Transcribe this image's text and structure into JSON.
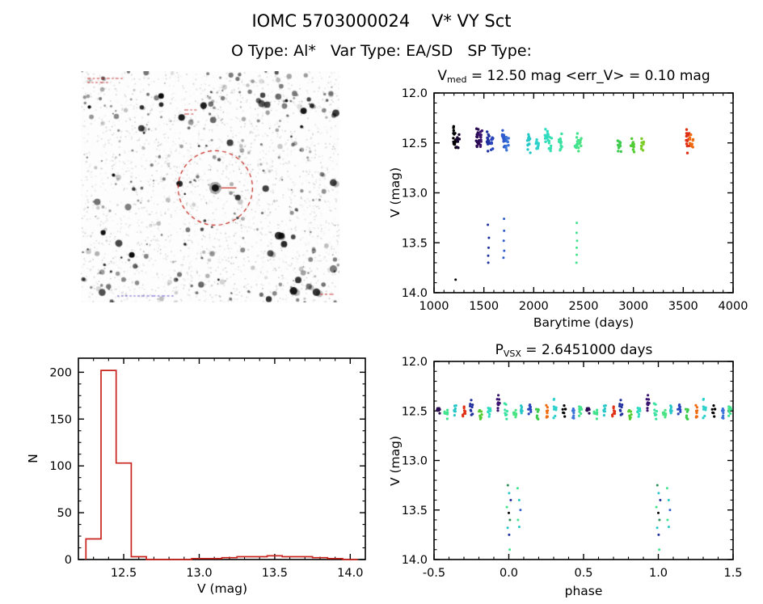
{
  "header": {
    "title": "IOMC 5703000024    V* VY Sct",
    "subtitle": "O Type: Al*   Var Type: EA/SD   SP Type:"
  },
  "star_field": {
    "background": "#fdfdfd",
    "circle_color": "#c22218",
    "pointer_color": "#c22218",
    "top_note_color": "#cc3333",
    "bottom_note_color": "#5a49c8",
    "seed": 77
  },
  "chart_data": [
    {
      "type": "scatter",
      "name": "lightcurve-vs-time",
      "title": "V_med = 12.50 mag <err_V> = 0.10 mag",
      "title_parts": {
        "prefix": "V",
        "sub": "med",
        "rest": " = 12.50 mag <err_V> = 0.10 mag"
      },
      "median_v_mag": 12.5,
      "err_v_mag": 0.1,
      "xlabel": "Barytime (days)",
      "ylabel": "V (mag)",
      "xlim": [
        1000,
        4000
      ],
      "ylim": [
        12.0,
        14.0
      ],
      "y_inverted": true,
      "xticks": [
        1000,
        1500,
        2000,
        2500,
        3000,
        3500,
        4000
      ],
      "xtick_labels": [
        "1000",
        "1500",
        "2000",
        "2500",
        "3000",
        "3500",
        "4000"
      ],
      "yticks": [
        12.0,
        12.5,
        13.0,
        13.5,
        14.0
      ],
      "ytick_labels": [
        "12.0",
        "12.5",
        "13.0",
        "13.5",
        "14.0"
      ],
      "x_minor": 100,
      "y_minor": 0.1,
      "clusters": [
        {
          "x": 1210,
          "color": "#000000",
          "n": 14,
          "y_min": 12.3,
          "y_max": 12.62,
          "deep": [
            13.87
          ]
        },
        {
          "x": 1240,
          "color": "#16062f",
          "n": 8,
          "y_min": 12.38,
          "y_max": 12.58,
          "deep": []
        },
        {
          "x": 1440,
          "color": "#2a0a52",
          "n": 15,
          "y_min": 12.32,
          "y_max": 12.6,
          "deep": []
        },
        {
          "x": 1468,
          "color": "#3a1470",
          "n": 11,
          "y_min": 12.36,
          "y_max": 12.58,
          "deep": []
        },
        {
          "x": 1545,
          "color": "#20309f",
          "n": 13,
          "y_min": 12.35,
          "y_max": 12.6,
          "deep": [
            13.32,
            13.45,
            13.55,
            13.63,
            13.7
          ]
        },
        {
          "x": 1578,
          "color": "#2a44bb",
          "n": 9,
          "y_min": 12.4,
          "y_max": 12.58,
          "deep": []
        },
        {
          "x": 1700,
          "color": "#2f5ccc",
          "n": 12,
          "y_min": 12.36,
          "y_max": 12.58,
          "deep": [
            13.26,
            13.38,
            13.48,
            13.58,
            13.65
          ]
        },
        {
          "x": 1735,
          "color": "#3b74d8",
          "n": 9,
          "y_min": 12.42,
          "y_max": 12.6,
          "deep": []
        },
        {
          "x": 1950,
          "color": "#27c7c7",
          "n": 12,
          "y_min": 12.4,
          "y_max": 12.62,
          "deep": []
        },
        {
          "x": 2040,
          "color": "#2ed2cb",
          "n": 10,
          "y_min": 12.42,
          "y_max": 12.6,
          "deep": []
        },
        {
          "x": 2130,
          "color": "#31dcc0",
          "n": 14,
          "y_min": 12.3,
          "y_max": 12.56,
          "deep": []
        },
        {
          "x": 2168,
          "color": "#36e0b2",
          "n": 9,
          "y_min": 12.42,
          "y_max": 12.6,
          "deep": []
        },
        {
          "x": 2270,
          "color": "#3ce2a1",
          "n": 12,
          "y_min": 12.34,
          "y_max": 12.6,
          "deep": []
        },
        {
          "x": 2430,
          "color": "#42e38e",
          "n": 12,
          "y_min": 12.38,
          "y_max": 12.6,
          "deep": [
            13.3,
            13.4,
            13.48,
            13.55,
            13.62,
            13.7
          ]
        },
        {
          "x": 2465,
          "color": "#48e382",
          "n": 8,
          "y_min": 12.44,
          "y_max": 12.6,
          "deep": []
        },
        {
          "x": 2860,
          "color": "#3ecb4e",
          "n": 10,
          "y_min": 12.42,
          "y_max": 12.6,
          "deep": []
        },
        {
          "x": 2990,
          "color": "#52cc33",
          "n": 12,
          "y_min": 12.4,
          "y_max": 12.62,
          "deep": []
        },
        {
          "x": 3090,
          "color": "#7ccc2a",
          "n": 9,
          "y_min": 12.44,
          "y_max": 12.58,
          "deep": []
        },
        {
          "x": 3545,
          "color": "#e03015",
          "n": 16,
          "y_min": 12.34,
          "y_max": 12.62,
          "deep": []
        },
        {
          "x": 3582,
          "color": "#f06a10",
          "n": 12,
          "y_min": 12.4,
          "y_max": 12.6,
          "deep": []
        }
      ]
    },
    {
      "type": "histogram",
      "name": "v-mag-histogram",
      "xlabel": "V (mag)",
      "ylabel": "N",
      "xlim": [
        12.2,
        14.1
      ],
      "ylim": [
        0,
        215
      ],
      "y_inverted": false,
      "xticks": [
        12.5,
        13.0,
        13.5,
        14.0
      ],
      "xtick_labels": [
        "12.5",
        "13.0",
        "13.5",
        "14.0"
      ],
      "yticks": [
        0,
        50,
        100,
        150,
        200
      ],
      "ytick_labels": [
        "0",
        "50",
        "100",
        "150",
        "200"
      ],
      "x_minor": 0.1,
      "y_minor": 12.5,
      "color": "#c8231c",
      "bin_edges": [
        12.25,
        12.35,
        12.45,
        12.55,
        12.65,
        12.75,
        12.85,
        12.95,
        13.05,
        13.15,
        13.25,
        13.35,
        13.45,
        13.55,
        13.65,
        13.75,
        13.85,
        13.95,
        14.05
      ],
      "counts": [
        22,
        202,
        103,
        3,
        0,
        0,
        0,
        1,
        1,
        2,
        3,
        3,
        4,
        3,
        3,
        2,
        1,
        0
      ]
    },
    {
      "type": "scatter",
      "name": "phase-folded-lightcurve",
      "title": "P_VSX = 2.6451000 days",
      "title_parts": {
        "prefix": "P",
        "sub": "VSX",
        "rest": " = 2.6451000 days"
      },
      "period_days": 2.6451,
      "xlabel": "phase",
      "ylabel": "V (mag)",
      "xlim": [
        -0.5,
        1.5
      ],
      "ylim": [
        12.0,
        14.0
      ],
      "y_inverted": true,
      "xticks": [
        -0.5,
        0.0,
        0.5,
        1.0,
        1.5
      ],
      "xtick_labels": [
        "-0.5",
        "0.0",
        "0.5",
        "1.0",
        "1.5"
      ],
      "yticks": [
        12.0,
        12.5,
        13.0,
        13.5,
        14.0
      ],
      "ytick_labels": [
        "12.0",
        "12.5",
        "13.0",
        "13.5",
        "14.0"
      ],
      "x_minor": 0.1,
      "y_minor": 0.1,
      "cluster_repeat_offset": 1.0,
      "clusters": [
        {
          "p": -0.47,
          "color": "#2a0a52",
          "n": 8,
          "y_min": 12.4,
          "y_max": 12.58
        },
        {
          "p": -0.42,
          "color": "#42e38e",
          "n": 9,
          "y_min": 12.42,
          "y_max": 12.6
        },
        {
          "p": -0.36,
          "color": "#27c7c7",
          "n": 8,
          "y_min": 12.38,
          "y_max": 12.58
        },
        {
          "p": -0.3,
          "color": "#e03015",
          "n": 8,
          "y_min": 12.42,
          "y_max": 12.6
        },
        {
          "p": -0.25,
          "color": "#20309f",
          "n": 9,
          "y_min": 12.36,
          "y_max": 12.56
        },
        {
          "p": -0.19,
          "color": "#52cc33",
          "n": 8,
          "y_min": 12.42,
          "y_max": 12.62
        },
        {
          "p": -0.13,
          "color": "#31dcc0",
          "n": 9,
          "y_min": 12.4,
          "y_max": 12.58
        },
        {
          "p": -0.07,
          "color": "#3a1470",
          "n": 10,
          "y_min": 12.3,
          "y_max": 12.56
        },
        {
          "p": -0.02,
          "color": "#3ce2a1",
          "n": 8,
          "y_min": 12.4,
          "y_max": 12.6
        },
        {
          "p": 0.04,
          "color": "#48e382",
          "n": 8,
          "y_min": 12.42,
          "y_max": 12.62
        },
        {
          "p": 0.09,
          "color": "#27c7c7",
          "n": 8,
          "y_min": 12.4,
          "y_max": 12.58
        },
        {
          "p": 0.14,
          "color": "#2a44bb",
          "n": 9,
          "y_min": 12.38,
          "y_max": 12.58
        },
        {
          "p": 0.19,
          "color": "#3ecb4e",
          "n": 8,
          "y_min": 12.42,
          "y_max": 12.6
        },
        {
          "p": 0.25,
          "color": "#f06a10",
          "n": 8,
          "y_min": 12.4,
          "y_max": 12.6
        },
        {
          "p": 0.31,
          "color": "#2ed2cb",
          "n": 9,
          "y_min": 12.36,
          "y_max": 12.58
        },
        {
          "p": 0.37,
          "color": "#000000",
          "n": 7,
          "y_min": 12.4,
          "y_max": 12.58
        },
        {
          "p": 0.43,
          "color": "#3b74d8",
          "n": 8,
          "y_min": 12.42,
          "y_max": 12.62
        },
        {
          "p": 0.48,
          "color": "#42e38e",
          "n": 8,
          "y_min": 12.38,
          "y_max": 12.58
        }
      ],
      "eclipses": [
        {
          "p": 0.0,
          "ys": [
            13.25,
            13.33,
            13.4,
            13.47,
            13.53,
            13.6,
            13.68,
            13.75,
            13.9
          ],
          "colors": [
            "#2f8f5a",
            "#27c7c7",
            "#1f2e9e",
            "#42e38e",
            "#000000"
          ]
        },
        {
          "p": 0.07,
          "ys": [
            13.28,
            13.4,
            13.5,
            13.6,
            13.67
          ],
          "colors": [
            "#42e38e",
            "#27c7c7",
            "#2f5ccc"
          ]
        }
      ]
    }
  ]
}
